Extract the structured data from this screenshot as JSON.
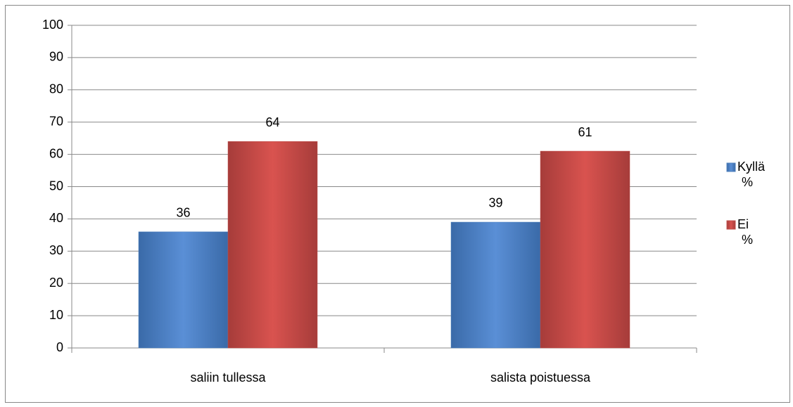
{
  "chart_data": {
    "type": "bar",
    "categories": [
      "saliin tullessa",
      "salista poistuessa"
    ],
    "series": [
      {
        "name": "Kyllä %",
        "color": "#4f81bd",
        "values": [
          36,
          39
        ]
      },
      {
        "name": "Ei %",
        "color": "#c0504d",
        "values": [
          64,
          61
        ]
      }
    ],
    "ylim": [
      0,
      100
    ],
    "yticks": [
      0,
      10,
      20,
      30,
      40,
      50,
      60,
      70,
      80,
      90,
      100
    ],
    "grid": true,
    "legend": "right"
  }
}
